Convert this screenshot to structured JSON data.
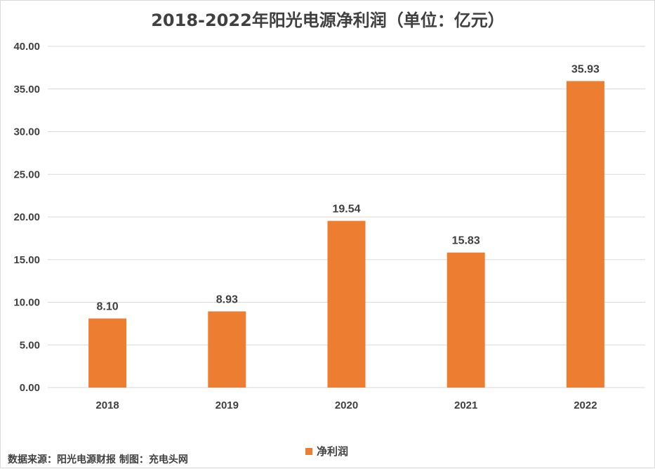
{
  "chart_data": {
    "type": "bar",
    "title": "2018-2022年阳光电源净利润（单位：亿元）",
    "categories": [
      "2018",
      "2019",
      "2020",
      "2021",
      "2022"
    ],
    "series": [
      {
        "name": "净利润",
        "values": [
          8.1,
          8.93,
          19.54,
          15.83,
          35.93
        ],
        "color": "#ED7D31"
      }
    ],
    "data_labels": [
      "8.10",
      "8.93",
      "19.54",
      "15.83",
      "35.93"
    ],
    "ylim": [
      0,
      40
    ],
    "yticks": [
      "0.00",
      "5.00",
      "10.00",
      "15.00",
      "20.00",
      "25.00",
      "30.00",
      "35.00",
      "40.00"
    ],
    "ytick_values": [
      0,
      5,
      10,
      15,
      20,
      25,
      30,
      35,
      40
    ],
    "grid": true,
    "legend_position": "bottom-center"
  },
  "footer": {
    "source": "数据来源：阳光电源财报 制图：充电头网"
  },
  "colors": {
    "bar": "#ED7D31",
    "text": "#404040",
    "grid": "#d9d9d9"
  }
}
